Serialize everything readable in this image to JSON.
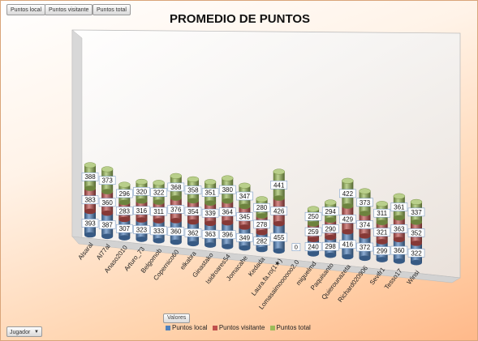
{
  "field_buttons": [
    "Puntos local",
    "Puntos visitante",
    "Puntos total"
  ],
  "legend_title": "Valores",
  "filter": {
    "label": "Jugador",
    "arrow": "▼"
  },
  "colors": {
    "local": "#4f81bd",
    "visitante": "#c0504d",
    "total": "#9bbb59"
  },
  "chart_data": {
    "type": "bar",
    "title": "PROMEDIO DE PUNTOS",
    "stacked": true,
    "three_d": true,
    "categories": [
      "Alsaral",
      "Al77al",
      "Anaso2010",
      "Arturo_73",
      "Belgomob",
      "Copernico60",
      "elkabra",
      "Ginastako",
      "Isidroares54",
      "Jomacahe",
      "Kedada",
      "Laura.fa.ro(1★)",
      "Lomasaimoooooo2.0",
      "miguelmd",
      "Paquisanto",
      "Quierounazeta",
      "Richard020906",
      "Sevifr1",
      "Tesso17",
      "Winsi"
    ],
    "series": [
      {
        "name": "Puntos local",
        "values": [
          393,
          387,
          307,
          323,
          333,
          360,
          362,
          363,
          396,
          349,
          282,
          455,
          0,
          240,
          298,
          416,
          372,
          299,
          360,
          322
        ]
      },
      {
        "name": "Puntos visitante",
        "values": [
          383,
          360,
          283,
          316,
          311,
          376,
          354,
          339,
          364,
          345,
          278,
          426,
          0,
          259,
          290,
          429,
          374,
          321,
          363,
          352
        ]
      },
      {
        "name": "Puntos total",
        "values": [
          388,
          373,
          296,
          320,
          322,
          368,
          358,
          351,
          380,
          347,
          280,
          441,
          0,
          250,
          294,
          422,
          373,
          311,
          361,
          337
        ]
      }
    ],
    "grid": false,
    "legend_position": "bottom"
  }
}
